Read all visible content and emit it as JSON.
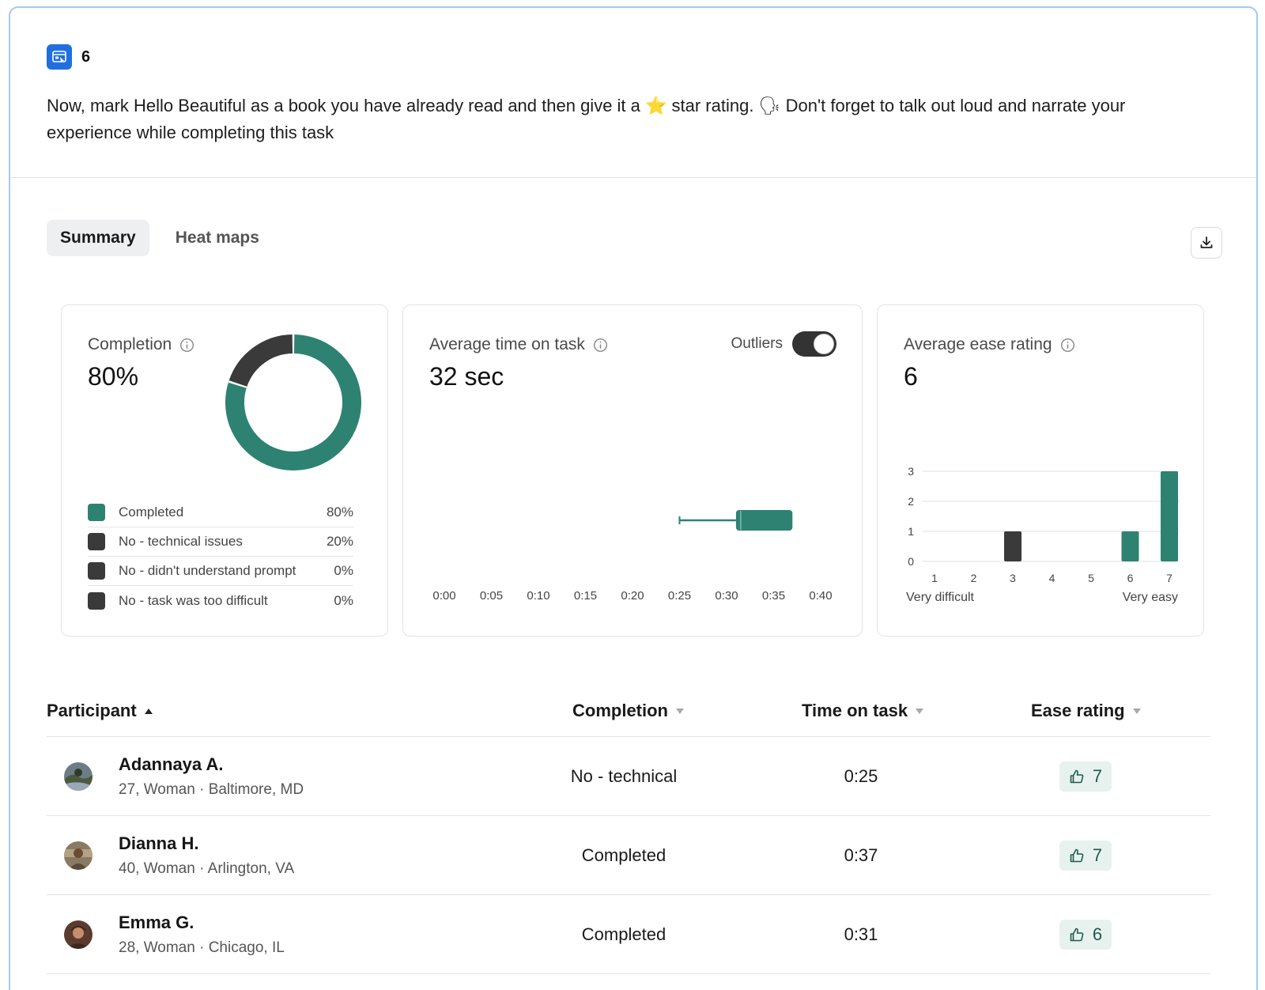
{
  "task": {
    "number": "6",
    "instruction": "Now, mark Hello Beautiful as a book you have already read and then give it a ⭐ star rating. 🗣 Don't forget to talk out loud and narrate your experience while completing this task"
  },
  "tabs": [
    {
      "label": "Summary",
      "active": true
    },
    {
      "label": "Heat maps",
      "active": false
    }
  ],
  "completion_card": {
    "title": "Completion",
    "value": "80%",
    "legend": [
      {
        "label": "Completed",
        "pct": "80%",
        "color": "#2e8272"
      },
      {
        "label": "No - technical issues",
        "pct": "20%",
        "color": "#3a3a3a"
      },
      {
        "label": "No - didn't understand prompt",
        "pct": "0%",
        "color": "#3a3a3a"
      },
      {
        "label": "No - task was too difficult",
        "pct": "0%",
        "color": "#3a3a3a"
      }
    ]
  },
  "time_card": {
    "title": "Average time on task",
    "value": "32 sec",
    "outliers_label": "Outliers",
    "outliers_on": true,
    "axis_ticks": [
      "0:00",
      "0:05",
      "0:10",
      "0:15",
      "0:20",
      "0:25",
      "0:30",
      "0:35",
      "0:40"
    ]
  },
  "ease_card": {
    "title": "Average ease rating",
    "value": "6",
    "low_label": "Very difficult",
    "high_label": "Very easy"
  },
  "table": {
    "headers": {
      "participant": "Participant",
      "completion": "Completion",
      "time": "Time on task",
      "ease": "Ease rating"
    },
    "rows": [
      {
        "name": "Adannaya A.",
        "meta": "27, Woman · Baltimore, MD",
        "completion": "No - technical",
        "time": "0:25",
        "ease": "7"
      },
      {
        "name": "Dianna H.",
        "meta": "40, Woman · Arlington, VA",
        "completion": "Completed",
        "time": "0:37",
        "ease": "7"
      },
      {
        "name": "Emma G.",
        "meta": "28, Woman · Chicago, IL",
        "completion": "Completed",
        "time": "0:31",
        "ease": "6"
      }
    ]
  },
  "chart_data": [
    {
      "type": "pie",
      "categories": [
        "Completed",
        "No - technical issues",
        "No - didn't understand prompt",
        "No - task was too difficult"
      ],
      "values": [
        80,
        20,
        0,
        0
      ]
    },
    {
      "type": "box",
      "x_ticks": [
        "0:00",
        "0:05",
        "0:10",
        "0:15",
        "0:20",
        "0:25",
        "0:30",
        "0:35",
        "0:40"
      ],
      "xlim": [
        0,
        40
      ],
      "min": 25,
      "q1": 31,
      "median": 31.5,
      "q3": 37,
      "max": 37
    },
    {
      "type": "bar",
      "categories": [
        "1",
        "2",
        "3",
        "4",
        "5",
        "6",
        "7"
      ],
      "values": [
        0,
        0,
        1,
        0,
        0,
        1,
        3
      ],
      "colors": [
        "#3a3a3a",
        "#3a3a3a",
        "#3a3a3a",
        "#3a3a3a",
        "#3a3a3a",
        "#2e8272",
        "#2e8272"
      ],
      "yticks": [
        "0",
        "1",
        "2",
        "3"
      ],
      "ylim": [
        0,
        3
      ],
      "xlabel_left": "Very difficult",
      "xlabel_right": "Very easy"
    }
  ],
  "colors": {
    "accent": "#2e8272",
    "dark": "#3a3a3a",
    "brand_blue": "#1f6fe0"
  }
}
